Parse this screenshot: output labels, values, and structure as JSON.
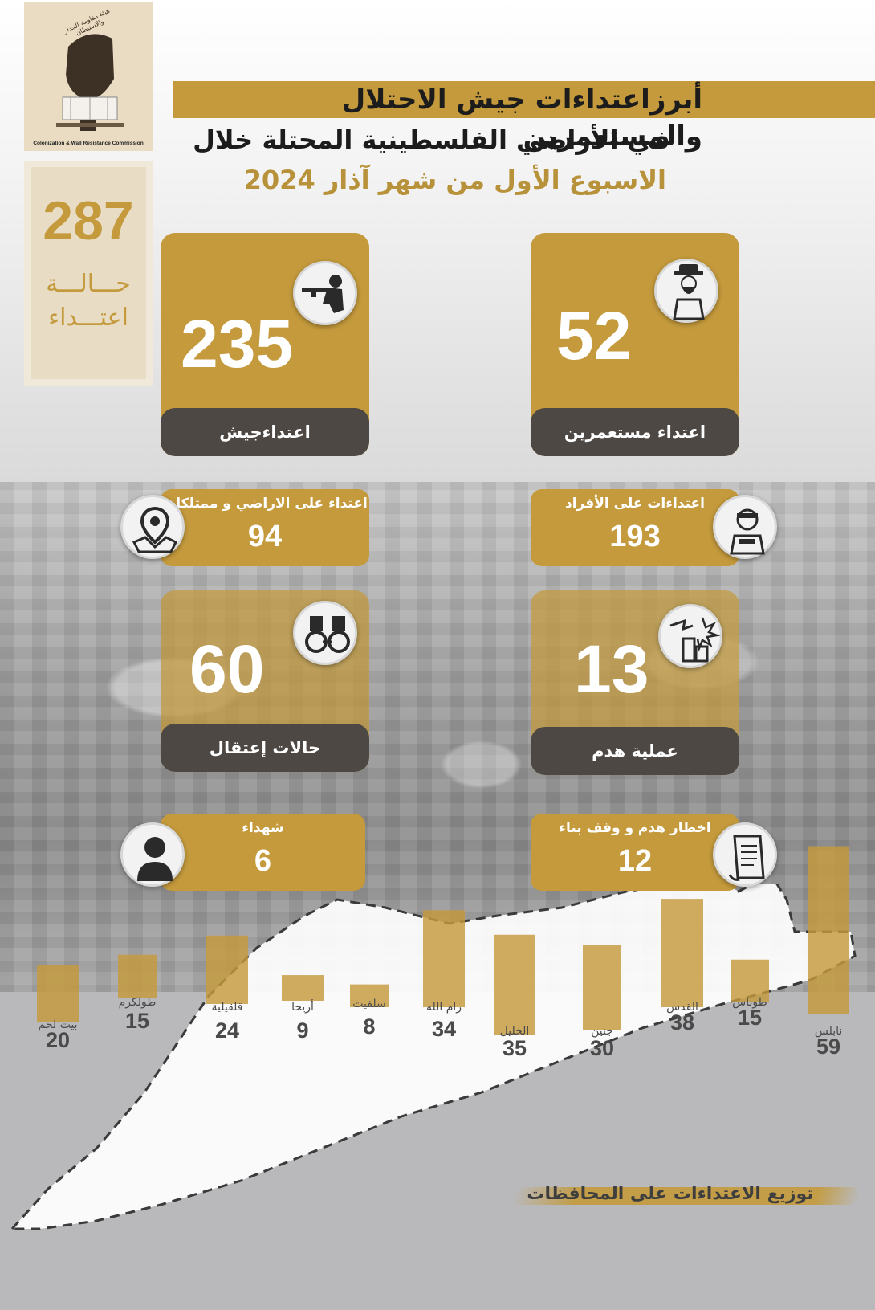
{
  "logo": {
    "caption": "Colonization & Wall Resistance Commission",
    "arc_text": "هيئة مقاومة الجدار والاستيطان"
  },
  "total": {
    "number": "287",
    "line1": "حـــالـــة",
    "line2": "اعتـــداء"
  },
  "header": {
    "line1": "أبرزاعتداءات جيش الاحتلال والمستعمرين",
    "line2": "في الأراضي الفلسطينية المحتلة خلال",
    "line3": "الاسبوع الأول من شهر آذار  2024"
  },
  "cards": {
    "army": {
      "number": "235",
      "label": "اعتداءجيش",
      "icon": "soldier-icon"
    },
    "settlers": {
      "number": "52",
      "label": "اعتداء مستعمرين",
      "icon": "settler-icon"
    },
    "arrests": {
      "number": "60",
      "label": "حالات إعتقال",
      "icon": "handcuffs-icon"
    },
    "demolition": {
      "number": "13",
      "label": "عملية  هدم",
      "icon": "demolition-icon"
    }
  },
  "mini": {
    "land": {
      "label": "اعتداء على الاراضي و ممتلكات",
      "number": "94",
      "icon": "map-pin-icon"
    },
    "individuals": {
      "label": "اعتداءات على الأفراد",
      "number": "193",
      "icon": "injured-person-icon"
    },
    "martyrs": {
      "label": "شهداء",
      "number": "6",
      "icon": "person-icon"
    },
    "notices": {
      "label": "اخطار  هدم و وقف بناء",
      "number": "12",
      "icon": "document-icon"
    }
  },
  "chart_title": "توزيع الاعتداءات على المحافظات",
  "colors": {
    "gold": "#c49a3c",
    "dark": "#4e4844",
    "text_gold": "#b8923a"
  },
  "chart_data": {
    "type": "bar",
    "title": "توزيع الاعتداءات على المحافظات",
    "categories": [
      "بيت لحم",
      "طولكرم",
      "قلقيلية",
      "أريحا",
      "سلفيت",
      "رام الله",
      "الخليل",
      "جنين",
      "القدس",
      "طوباس",
      "نابلس"
    ],
    "values": [
      20,
      15,
      24,
      9,
      8,
      34,
      35,
      30,
      38,
      15,
      59
    ],
    "labels": [
      "20",
      "15",
      "24",
      "9",
      "8",
      "34",
      "35",
      "30",
      "38",
      "15",
      "59"
    ],
    "ylim": [
      0,
      60
    ],
    "grid": false,
    "xlabel": "",
    "ylabel": ""
  }
}
